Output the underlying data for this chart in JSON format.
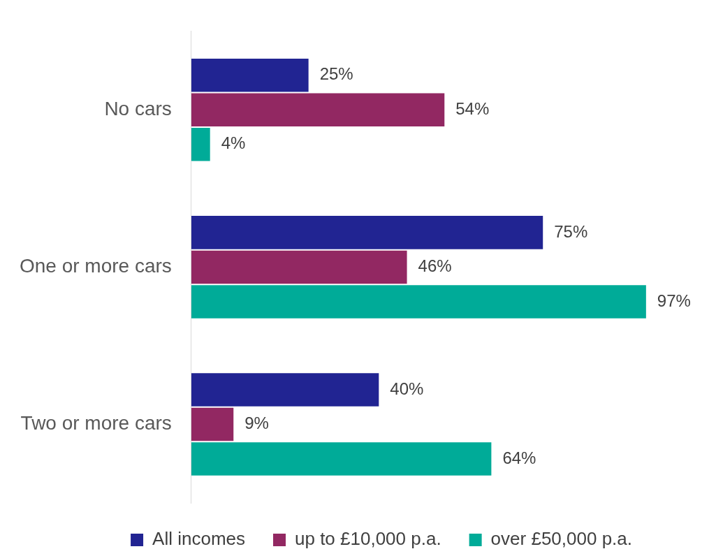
{
  "chart_data": {
    "type": "bar",
    "orientation": "horizontal",
    "categories": [
      "No cars",
      "One or more cars",
      "Two or more cars"
    ],
    "series": [
      {
        "name": "All incomes",
        "color": "#212492",
        "values": [
          25,
          75,
          40
        ],
        "value_labels": [
          "25%",
          "75%",
          "40%"
        ]
      },
      {
        "name": "up to £10,000 p.a.",
        "color": "#922862",
        "values": [
          54,
          46,
          9
        ],
        "value_labels": [
          "54%",
          "46%",
          "9%"
        ]
      },
      {
        "name": "over £50,000 p.a.",
        "color": "#00ab98",
        "values": [
          4,
          97,
          64
        ],
        "value_labels": [
          "4%",
          "97%",
          "64%"
        ]
      }
    ],
    "legend": "bottom",
    "tick_labels": "y"
  }
}
